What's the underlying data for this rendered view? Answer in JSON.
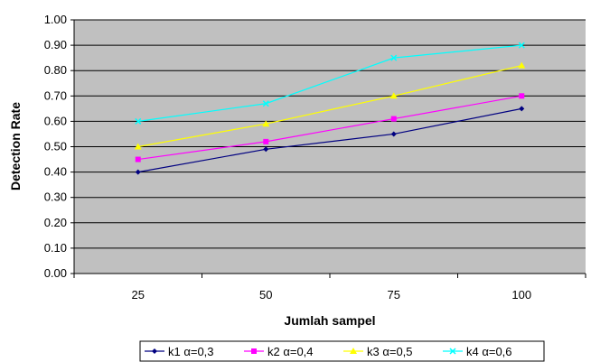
{
  "chart_data": {
    "type": "line",
    "categories": [
      "25",
      "50",
      "75",
      "100"
    ],
    "series": [
      {
        "name": "k1  α=0,3",
        "color": "#000080",
        "marker": "diamond",
        "values": [
          0.4,
          0.49,
          0.55,
          0.65
        ]
      },
      {
        "name": "k2  α=0,4",
        "color": "#ff00ff",
        "marker": "square",
        "values": [
          0.45,
          0.52,
          0.61,
          0.7
        ]
      },
      {
        "name": "k3  α=0,5",
        "color": "#ffff00",
        "marker": "triangle",
        "values": [
          0.5,
          0.59,
          0.7,
          0.82
        ]
      },
      {
        "name": "k4  α=0,6",
        "color": "#00ffff",
        "marker": "x",
        "values": [
          0.6,
          0.67,
          0.85,
          0.9
        ]
      }
    ],
    "title": "",
    "xlabel": "Jumlah sampel",
    "ylabel": "Detection Rate",
    "ylim": [
      0.0,
      1.0
    ],
    "yticks": [
      "0.00",
      "0.10",
      "0.20",
      "0.30",
      "0.40",
      "0.50",
      "0.60",
      "0.70",
      "0.80",
      "0.90",
      "1.00"
    ],
    "grid": true,
    "plot_background": "#c0c0c0",
    "legend_position": "bottom"
  }
}
